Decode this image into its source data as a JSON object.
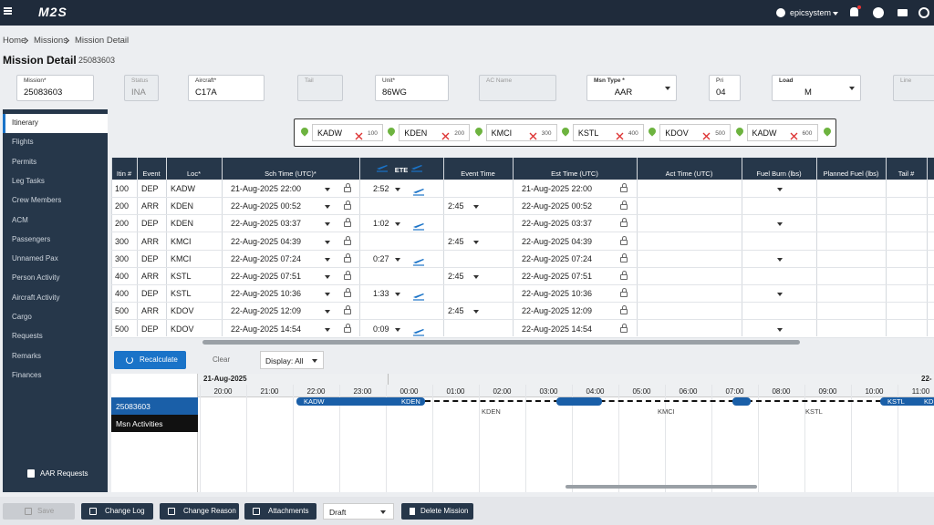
{
  "topbar": {
    "logo": "M2S",
    "user": "epicsystem"
  },
  "breadcrumb": [
    "Home",
    "Missions",
    "Mission Detail"
  ],
  "header": {
    "title": "Mission Detail",
    "id": "25083603"
  },
  "fields": [
    {
      "label": "Mission*",
      "value": "25083603"
    },
    {
      "label": "Status",
      "value": "INA",
      "disabled": true
    },
    {
      "label": "Aircraft*",
      "value": "C17A"
    },
    {
      "label": "Tail",
      "disabled": true
    },
    {
      "label": "Unit*",
      "value": "86WG"
    },
    {
      "label": "AC Name",
      "disabled": true
    },
    {
      "label": "Msn Type *",
      "value": "AAR",
      "select": true
    },
    {
      "label": "Pri",
      "value": "04"
    },
    {
      "label": "Load",
      "value": "M",
      "select": true
    },
    {
      "label": "Line",
      "disabled": true
    }
  ],
  "sidebar": {
    "items": [
      "Itinerary",
      "Flights",
      "Permits",
      "Leg Tasks",
      "Crew Members",
      "ACM",
      "Passengers",
      "Unnamed Pax",
      "Person Activity",
      "Aircraft Activity",
      "Cargo",
      "Requests",
      "Remarks",
      "Finances"
    ],
    "selected": 0,
    "footer": "AAR Requests"
  },
  "route": [
    {
      "code": "KADW",
      "seq": 100
    },
    {
      "code": "KDEN",
      "seq": 200
    },
    {
      "code": "KMCI",
      "seq": 300
    },
    {
      "code": "KSTL",
      "seq": 400
    },
    {
      "code": "KDOV",
      "seq": 500
    },
    {
      "code": "KADW",
      "seq": 600
    }
  ],
  "table": {
    "columns": [
      "Itin #",
      "Event",
      "Loc*",
      "Sch Time (UTC)*",
      "ETE",
      "Event Time",
      "Est Time (UTC)",
      "Act Time (UTC)",
      "Fuel Burn (lbs)",
      "Planned Fuel (lbs)",
      "Tail #"
    ],
    "rows": [
      [
        100,
        "DEP",
        "KADW",
        "21-Aug-2025 22:00",
        "2:52",
        null,
        "21-Aug-2025 22:00"
      ],
      [
        200,
        "ARR",
        "KDEN",
        "22-Aug-2025 00:52",
        null,
        "2:45",
        "22-Aug-2025 00:52"
      ],
      [
        200,
        "DEP",
        "KDEN",
        "22-Aug-2025 03:37",
        "1:02",
        null,
        "22-Aug-2025 03:37"
      ],
      [
        300,
        "ARR",
        "KMCI",
        "22-Aug-2025 04:39",
        null,
        "2:45",
        "22-Aug-2025 04:39"
      ],
      [
        300,
        "DEP",
        "KMCI",
        "22-Aug-2025 07:24",
        "0:27",
        null,
        "22-Aug-2025 07:24"
      ],
      [
        400,
        "ARR",
        "KSTL",
        "22-Aug-2025 07:51",
        null,
        "2:45",
        "22-Aug-2025 07:51"
      ],
      [
        400,
        "DEP",
        "KSTL",
        "22-Aug-2025 10:36",
        "1:33",
        null,
        "22-Aug-2025 10:36"
      ],
      [
        500,
        "ARR",
        "KDOV",
        "22-Aug-2025 12:09",
        null,
        "2:45",
        "22-Aug-2025 12:09"
      ],
      [
        500,
        "DEP",
        "KDOV",
        "22-Aug-2025 14:54",
        "0:09",
        null,
        "22-Aug-2025 14:54"
      ]
    ]
  },
  "toolbar": {
    "recalculate": "Recalculate",
    "clear": "Clear",
    "display": "Display: All"
  },
  "timeline": {
    "dates": [
      "21-Aug-2025",
      "22-"
    ],
    "hours": [
      "20:00",
      "21:00",
      "22:00",
      "23:00",
      "00:00",
      "01:00",
      "02:00",
      "03:00",
      "04:00",
      "05:00",
      "06:00",
      "07:00",
      "08:00",
      "09:00",
      "10:00",
      "11:00"
    ],
    "rows": [
      "25083603",
      "Msn Activities"
    ],
    "bar_labels": [
      "KADW",
      "KDEN",
      "KSTL",
      "KD"
    ],
    "stops": [
      "KDEN",
      "KMCI",
      "KSTL"
    ]
  },
  "footer": {
    "buttons": [
      "Save",
      "Change Log",
      "Change Reason",
      "Attachments"
    ],
    "status": "Draft",
    "delete": "Delete Mission"
  }
}
